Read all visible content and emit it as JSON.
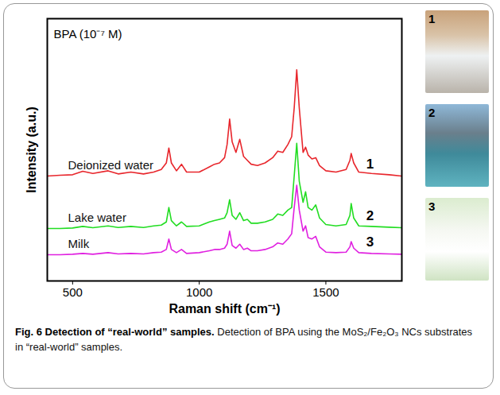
{
  "chart_data": {
    "type": "line",
    "annotation": "BPA (10⁻⁷ M)",
    "x_label": "Raman shift (cm⁻¹)",
    "y_label": "Intensity (a.u.)",
    "x": [
      400,
      450,
      500,
      540,
      580,
      640,
      680,
      730,
      780,
      820,
      850,
      870,
      880,
      890,
      910,
      930,
      950,
      1000,
      1040,
      1060,
      1080,
      1100,
      1110,
      1120,
      1130,
      1145,
      1160,
      1175,
      1190,
      1205,
      1230,
      1260,
      1290,
      1310,
      1330,
      1350,
      1365,
      1375,
      1385,
      1395,
      1410,
      1420,
      1430,
      1445,
      1460,
      1475,
      1500,
      1540,
      1580,
      1595,
      1600,
      1610,
      1630,
      1680,
      1750,
      1800
    ],
    "xlim": [
      400,
      1800
    ],
    "xticks": [
      500,
      1000,
      1500
    ],
    "ylim": [
      0,
      100
    ],
    "tick_labels": "x",
    "series": [
      {
        "name": "Deionized water",
        "tag": "1",
        "color": "#e8262c",
        "values": [
          40,
          40.3,
          40.5,
          41.8,
          41,
          42,
          40.8,
          41.5,
          40.8,
          41.5,
          42.5,
          45,
          50.7,
          45,
          42,
          44.5,
          41.5,
          41.5,
          43.5,
          44.5,
          45,
          47,
          52,
          61.7,
          53,
          49,
          54,
          47.5,
          46,
          44.5,
          44,
          45,
          47,
          49.5,
          49,
          52,
          55,
          66,
          80.5,
          66,
          49,
          51,
          48,
          46.5,
          47,
          44,
          42,
          41.5,
          42.5,
          46,
          48.6,
          45,
          41.5,
          41,
          40.5,
          40
        ]
      },
      {
        "name": "Lake water",
        "tag": "2",
        "color": "#22dd22",
        "values": [
          20,
          20,
          20.2,
          20.8,
          20.3,
          21,
          20.4,
          20.8,
          20.4,
          21,
          21.3,
          22.5,
          28,
          23,
          21,
          22.5,
          20.8,
          21,
          22.5,
          23,
          23.5,
          24,
          26,
          31,
          25,
          23.5,
          26,
          23,
          23.5,
          22,
          22,
          22.5,
          23.5,
          25.5,
          25,
          27,
          28,
          40,
          52.5,
          38,
          30,
          34,
          28,
          27,
          29,
          24,
          21.5,
          21,
          21.5,
          25,
          29.5,
          24,
          21,
          20.8,
          20.5,
          20.3
        ]
      },
      {
        "name": "Milk",
        "tag": "3",
        "color": "#e020e0",
        "values": [
          10,
          10,
          10.2,
          10.5,
          10.2,
          10.8,
          10.3,
          10.5,
          10.3,
          10.8,
          11,
          12,
          16,
          12,
          10.8,
          12,
          10.5,
          10.8,
          11.5,
          12,
          12,
          12.5,
          14,
          19,
          13.5,
          12.5,
          14,
          12,
          12.5,
          11.5,
          11.5,
          12,
          13,
          14.5,
          14,
          16,
          18,
          28,
          36.5,
          27,
          19,
          21,
          16.5,
          16,
          17,
          13,
          11,
          10.8,
          11,
          13,
          15,
          12.5,
          10.8,
          10.5,
          10.3,
          10.2
        ]
      }
    ]
  },
  "photo_labels": [
    "1",
    "2",
    "3"
  ],
  "caption_title": "Fig. 6 Detection of “real-world” samples.",
  "caption": "Detection of BPA using the MoS₂/Fe₂O₃ NCs substrates in “real-world” samples."
}
